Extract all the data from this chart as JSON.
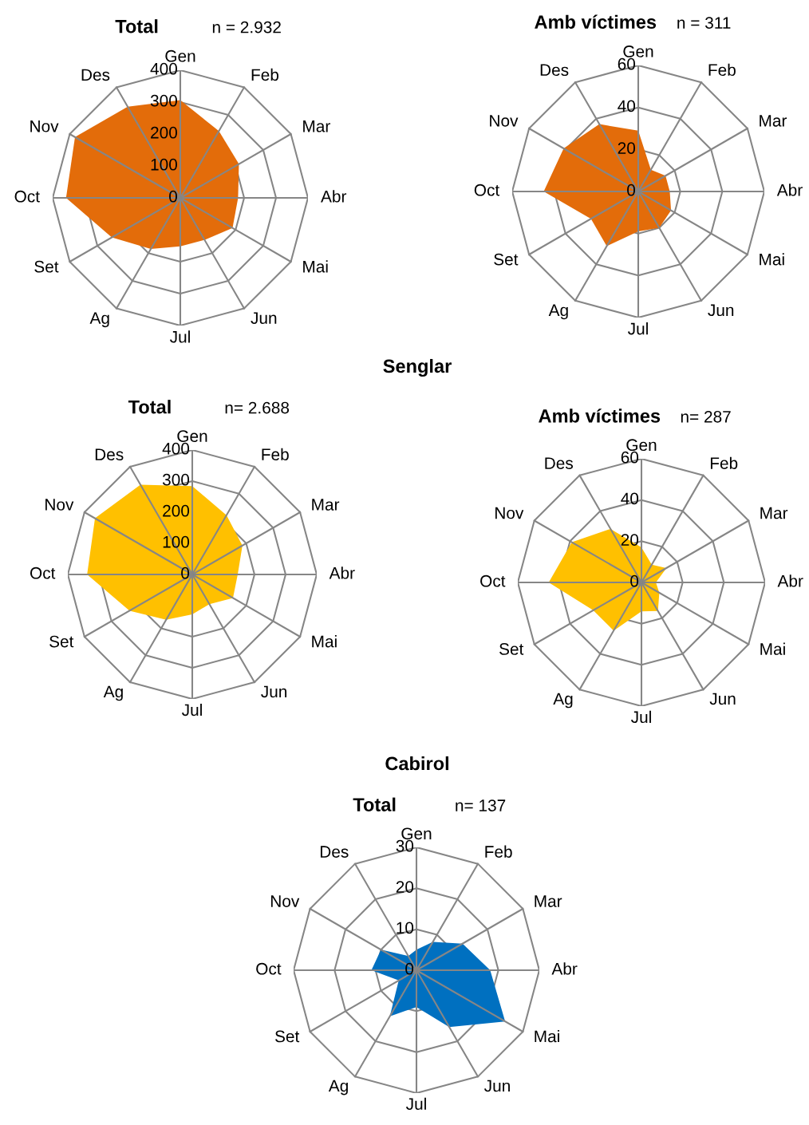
{
  "chart_data": [
    {
      "type": "radar",
      "title": "Total",
      "subtitle": "n = 2.932",
      "categories": [
        "Gen",
        "Feb",
        "Mar",
        "Abr",
        "Mai",
        "Jun",
        "Jul",
        "Ag",
        "Set",
        "Oct",
        "Nov",
        "Des"
      ],
      "ylim": [
        0,
        400
      ],
      "yticks": [
        0,
        100,
        200,
        300,
        400
      ],
      "grid": true,
      "series": [
        {
          "color": "#e36c0a",
          "values": [
            306,
            242,
            212,
            181,
            189,
            152,
            152,
            185,
            248,
            358,
            381,
            330
          ]
        }
      ]
    },
    {
      "type": "radar",
      "title": "Amb víctimes",
      "subtitle": "n = 311",
      "categories": [
        "Gen",
        "Feb",
        "Mar",
        "Abr",
        "Mai",
        "Jun",
        "Jul",
        "Ag",
        "Set",
        "Oct",
        "Nov",
        "Des"
      ],
      "ylim": [
        0,
        60
      ],
      "yticks": [
        0,
        20,
        40,
        60
      ],
      "grid": true,
      "series": [
        {
          "color": "#e36c0a",
          "values": [
            29,
            12,
            15,
            15,
            18,
            20,
            19,
            30,
            26,
            45,
            41,
            37
          ]
        }
      ]
    },
    {
      "type": "radar",
      "title": "Total",
      "subtitle": "n= 2.688",
      "annotations": [
        "Senglar"
      ],
      "categories": [
        "Gen",
        "Feb",
        "Mar",
        "Abr",
        "Mai",
        "Jun",
        "Jul",
        "Ag",
        "Set",
        "Oct",
        "Nov",
        "Des"
      ],
      "ylim": [
        0,
        400
      ],
      "yticks": [
        0,
        100,
        200,
        300,
        400
      ],
      "grid": true,
      "series": [
        {
          "color": "#ffc000",
          "values": [
            284,
            220,
            186,
            146,
            151,
            110,
            128,
            168,
            233,
            338,
            361,
            333
          ]
        }
      ]
    },
    {
      "type": "radar",
      "title": "Amb víctimes",
      "subtitle": "n= 287",
      "categories": [
        "Gen",
        "Feb",
        "Mar",
        "Abr",
        "Mai",
        "Jun",
        "Jul",
        "Ag",
        "Set",
        "Oct",
        "Nov",
        "Des"
      ],
      "ylim": [
        0,
        60
      ],
      "yticks": [
        0,
        20,
        40,
        60
      ],
      "grid": true,
      "series": [
        {
          "color": "#ffc000",
          "values": [
            17,
            10,
            14,
            7,
            10,
            16,
            14,
            27,
            27,
            45,
            39,
            30
          ]
        }
      ]
    },
    {
      "type": "radar",
      "title": "Total",
      "subtitle": "n= 137",
      "annotations": [
        "Cabirol"
      ],
      "categories": [
        "Gen",
        "Feb",
        "Mar",
        "Abr",
        "Mai",
        "Jun",
        "Jul",
        "Ag",
        "Set",
        "Oct",
        "Nov",
        "Des"
      ],
      "ylim": [
        0,
        30
      ],
      "yticks": [
        0,
        10,
        20,
        30
      ],
      "grid": true,
      "series": [
        {
          "color": "#0070c0",
          "values": [
            5,
            8,
            13,
            18,
            25,
            16,
            9,
            13,
            5,
            11,
            10,
            4
          ]
        }
      ]
    }
  ]
}
